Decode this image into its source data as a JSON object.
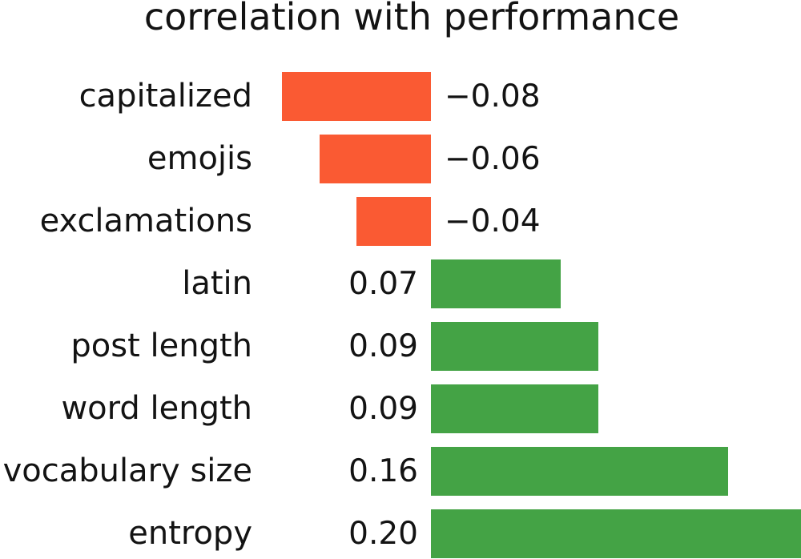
{
  "chart_data": {
    "type": "bar",
    "orientation": "horizontal",
    "title": "correlation with performance",
    "categories": [
      "capitalized",
      "emojis",
      "exclamations",
      "latin",
      "post length",
      "word length",
      "vocabulary size",
      "entropy"
    ],
    "values": [
      -0.08,
      -0.06,
      -0.04,
      0.07,
      0.09,
      0.09,
      0.16,
      0.2
    ],
    "value_labels": [
      "−0.08",
      "−0.06",
      "−0.04",
      "0.07",
      "0.09",
      "0.09",
      "0.16",
      "0.20"
    ],
    "colors": {
      "negative_bar": "#fa5a33",
      "positive_bar": "#44a345",
      "text": "#131313",
      "background": "#ffffff"
    },
    "xlabel": "",
    "ylabel": "",
    "xlim": [
      -0.232,
      0.199
    ],
    "grid": false,
    "axes_visible": false,
    "legend": null,
    "value_label_placement": "opposite side of zero axis from bar"
  }
}
